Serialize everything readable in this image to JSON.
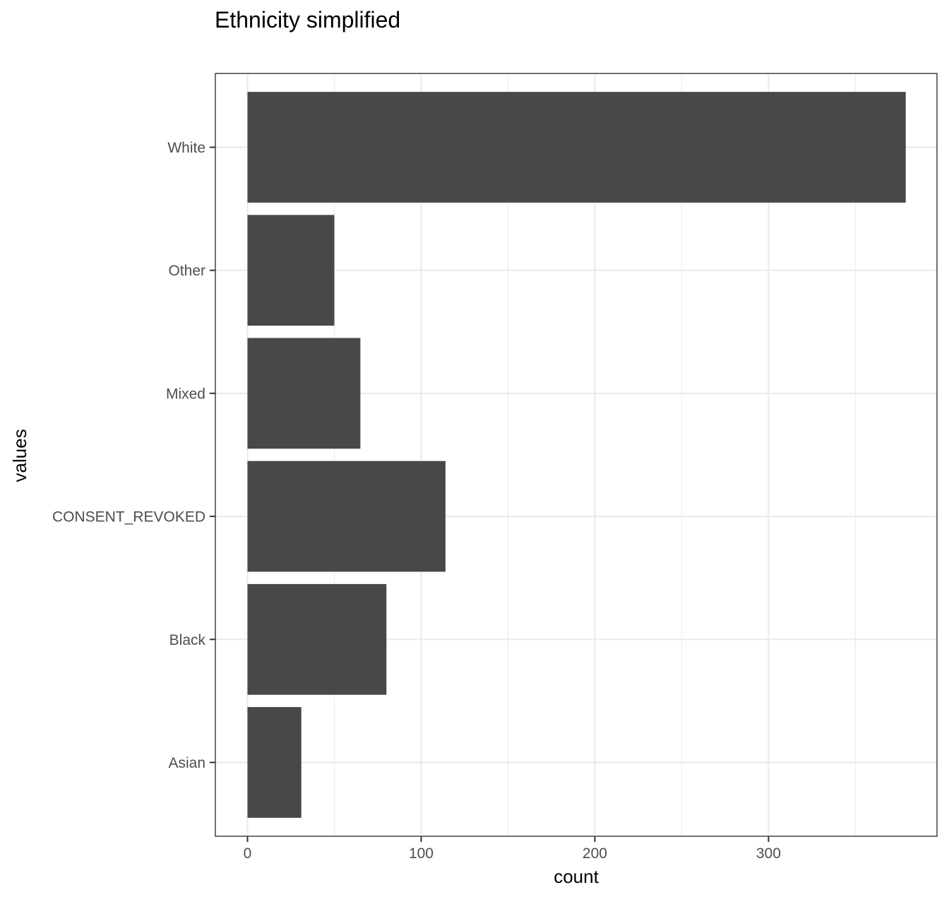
{
  "chart_data": {
    "type": "bar",
    "orientation": "horizontal",
    "title": "Ethnicity simplified",
    "xlabel": "count",
    "ylabel": "values",
    "categories": [
      "White",
      "Other",
      "Mixed",
      "CONSENT_REVOKED",
      "Black",
      "Asian"
    ],
    "values": [
      379,
      50,
      65,
      114,
      80,
      31
    ],
    "xlim": [
      -18.5,
      397
    ],
    "xticks": [
      0,
      100,
      200,
      300
    ],
    "xtick_labels": [
      "0",
      "100",
      "200",
      "300"
    ],
    "grid": true,
    "bar_color": "#484848",
    "legend": "none"
  }
}
